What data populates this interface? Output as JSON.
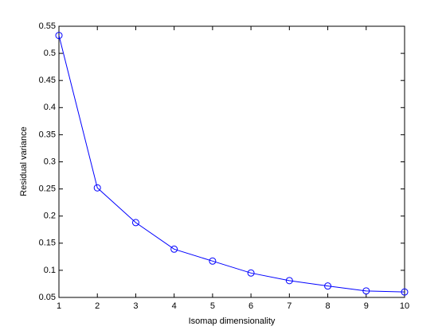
{
  "chart_data": {
    "type": "line",
    "xlabel": "Isomap dimensionality",
    "ylabel": "Residual variance",
    "x": [
      1,
      2,
      3,
      4,
      5,
      6,
      7,
      8,
      9,
      10
    ],
    "series": [
      {
        "color": "#0000ff",
        "marker": "circle",
        "values": [
          0.533,
          0.252,
          0.188,
          0.139,
          0.117,
          0.095,
          0.081,
          0.071,
          0.062,
          0.06
        ]
      }
    ],
    "xlim": [
      1,
      10
    ],
    "xticks": [
      1,
      2,
      3,
      4,
      5,
      6,
      7,
      8,
      9,
      10
    ],
    "ylim": [
      0.05,
      0.55
    ],
    "yticks": [
      0.05,
      0.1,
      0.15,
      0.2,
      0.25,
      0.3,
      0.35,
      0.4,
      0.45,
      0.5,
      0.55
    ],
    "grid": false
  }
}
